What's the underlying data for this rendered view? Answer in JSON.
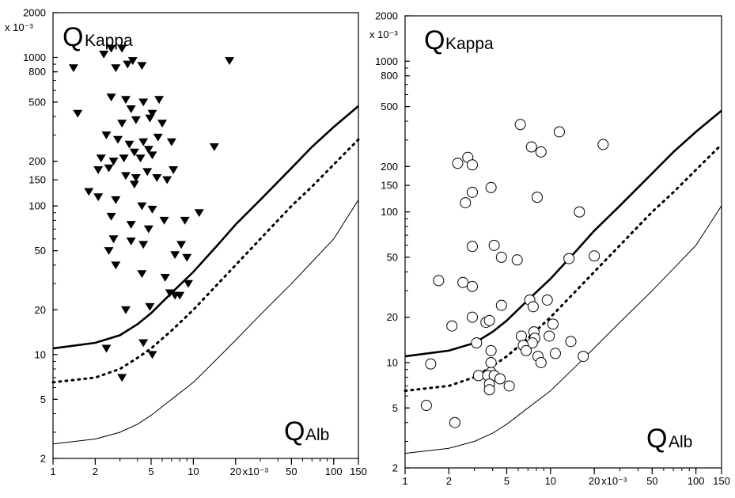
{
  "chart_data": [
    {
      "type": "scatter",
      "panel": "left",
      "x_scale": "log",
      "y_scale": "log",
      "xlim": [
        1,
        150
      ],
      "ylim": [
        2,
        2000
      ],
      "x_ticks": [
        "1",
        "2",
        "5",
        "10",
        "20",
        "50",
        "100",
        "150"
      ],
      "x_exponent_label": "x10⁻³",
      "y_ticks": [
        "2",
        "5",
        "10",
        "20",
        "50",
        "100",
        "150",
        "200",
        "500",
        "800",
        "1000",
        "2000"
      ],
      "y_exponent_label": "x 10⁻³",
      "y_axis_label": {
        "main": "Q",
        "sub": "Kappa"
      },
      "x_axis_label": {
        "main": "Q",
        "sub": "Alb"
      },
      "marker": "filled-triangle-down",
      "marker_color": "#000000",
      "points": [
        {
          "x": 1.4,
          "y": 850
        },
        {
          "x": 1.5,
          "y": 420
        },
        {
          "x": 2.3,
          "y": 1050
        },
        {
          "x": 2.6,
          "y": 1150
        },
        {
          "x": 2.8,
          "y": 850
        },
        {
          "x": 3.1,
          "y": 1150
        },
        {
          "x": 3.4,
          "y": 900
        },
        {
          "x": 3.7,
          "y": 950
        },
        {
          "x": 4.3,
          "y": 880
        },
        {
          "x": 18.1,
          "y": 950
        },
        {
          "x": 2.6,
          "y": 540
        },
        {
          "x": 3.3,
          "y": 520
        },
        {
          "x": 3.6,
          "y": 450
        },
        {
          "x": 4.4,
          "y": 500
        },
        {
          "x": 5.1,
          "y": 420
        },
        {
          "x": 5.7,
          "y": 520
        },
        {
          "x": 3.1,
          "y": 360
        },
        {
          "x": 3.9,
          "y": 380
        },
        {
          "x": 4.9,
          "y": 390
        },
        {
          "x": 6.0,
          "y": 360
        },
        {
          "x": 2.4,
          "y": 300
        },
        {
          "x": 2.9,
          "y": 280
        },
        {
          "x": 3.5,
          "y": 260
        },
        {
          "x": 4.4,
          "y": 270
        },
        {
          "x": 5.6,
          "y": 290
        },
        {
          "x": 7.0,
          "y": 270
        },
        {
          "x": 14.1,
          "y": 250
        },
        {
          "x": 2.2,
          "y": 210
        },
        {
          "x": 2.7,
          "y": 200
        },
        {
          "x": 3.2,
          "y": 210
        },
        {
          "x": 3.8,
          "y": 230
        },
        {
          "x": 4.2,
          "y": 210
        },
        {
          "x": 4.8,
          "y": 240
        },
        {
          "x": 5.1,
          "y": 220
        },
        {
          "x": 2.1,
          "y": 175
        },
        {
          "x": 2.5,
          "y": 180
        },
        {
          "x": 3.3,
          "y": 160
        },
        {
          "x": 3.9,
          "y": 155
        },
        {
          "x": 4.7,
          "y": 170
        },
        {
          "x": 5.5,
          "y": 155
        },
        {
          "x": 6.5,
          "y": 150
        },
        {
          "x": 7.2,
          "y": 175
        },
        {
          "x": 1.8,
          "y": 125
        },
        {
          "x": 2.1,
          "y": 115
        },
        {
          "x": 2.8,
          "y": 110
        },
        {
          "x": 3.8,
          "y": 140
        },
        {
          "x": 4.3,
          "y": 100
        },
        {
          "x": 5.1,
          "y": 95
        },
        {
          "x": 2.6,
          "y": 85
        },
        {
          "x": 3.6,
          "y": 75
        },
        {
          "x": 4.8,
          "y": 70
        },
        {
          "x": 6.2,
          "y": 80
        },
        {
          "x": 8.7,
          "y": 80
        },
        {
          "x": 11.0,
          "y": 90
        },
        {
          "x": 2.7,
          "y": 60
        },
        {
          "x": 3.6,
          "y": 58
        },
        {
          "x": 4.4,
          "y": 55
        },
        {
          "x": 8.2,
          "y": 55
        },
        {
          "x": 2.5,
          "y": 50
        },
        {
          "x": 2.8,
          "y": 40
        },
        {
          "x": 7.4,
          "y": 47
        },
        {
          "x": 9.0,
          "y": 45
        },
        {
          "x": 4.3,
          "y": 35
        },
        {
          "x": 6.3,
          "y": 33
        },
        {
          "x": 6.8,
          "y": 26
        },
        {
          "x": 7.4,
          "y": 25
        },
        {
          "x": 8.0,
          "y": 25
        },
        {
          "x": 9.2,
          "y": 30
        },
        {
          "x": 3.3,
          "y": 20
        },
        {
          "x": 4.9,
          "y": 21
        },
        {
          "x": 2.4,
          "y": 11
        },
        {
          "x": 4.4,
          "y": 12
        },
        {
          "x": 5.1,
          "y": 10
        },
        {
          "x": 3.1,
          "y": 7
        }
      ],
      "lines": [
        {
          "style": "thick-solid",
          "points": [
            [
              1,
              11
            ],
            [
              2,
              12
            ],
            [
              3,
              13.5
            ],
            [
              4,
              16
            ],
            [
              5,
              19
            ],
            [
              7,
              26
            ],
            [
              10,
              36
            ],
            [
              15,
              55
            ],
            [
              20,
              75
            ],
            [
              30,
              110
            ],
            [
              50,
              180
            ],
            [
              70,
              250
            ],
            [
              100,
              340
            ],
            [
              150,
              470
            ]
          ]
        },
        {
          "style": "dotted",
          "points": [
            [
              1,
              6.5
            ],
            [
              2,
              7
            ],
            [
              3,
              8
            ],
            [
              4,
              9.5
            ],
            [
              5,
              11
            ],
            [
              7,
              14.5
            ],
            [
              10,
              20
            ],
            [
              15,
              30
            ],
            [
              20,
              40
            ],
            [
              30,
              60
            ],
            [
              50,
              100
            ],
            [
              70,
              135
            ],
            [
              100,
              190
            ],
            [
              150,
              280
            ]
          ]
        },
        {
          "style": "thin-solid",
          "points": [
            [
              1,
              2.5
            ],
            [
              2,
              2.7
            ],
            [
              3,
              3
            ],
            [
              4,
              3.4
            ],
            [
              5,
              3.9
            ],
            [
              7,
              5
            ],
            [
              10,
              6.5
            ],
            [
              15,
              9.5
            ],
            [
              20,
              12.5
            ],
            [
              30,
              18.5
            ],
            [
              50,
              30
            ],
            [
              70,
              42
            ],
            [
              100,
              60
            ],
            [
              150,
              110
            ]
          ]
        }
      ]
    },
    {
      "type": "scatter",
      "panel": "right",
      "x_scale": "log",
      "y_scale": "log",
      "xlim": [
        1,
        150
      ],
      "ylim": [
        2,
        2000
      ],
      "x_ticks": [
        "1",
        "2",
        "5",
        "10",
        "20",
        "50",
        "100",
        "150"
      ],
      "x_exponent_label": "x10⁻³",
      "y_ticks": [
        "2",
        "5",
        "10",
        "20",
        "50",
        "100",
        "150",
        "200",
        "500",
        "800",
        "1000",
        "2000"
      ],
      "y_exponent_label": "x 10⁻³",
      "y_axis_label": {
        "main": "Q",
        "sub": "Kappa"
      },
      "x_axis_label": {
        "main": "Q",
        "sub": "Alb"
      },
      "marker": "open-circle",
      "marker_color": "#000000",
      "points": [
        {
          "x": 6.2,
          "y": 380
        },
        {
          "x": 11.5,
          "y": 340
        },
        {
          "x": 7.4,
          "y": 270
        },
        {
          "x": 23.0,
          "y": 280
        },
        {
          "x": 8.6,
          "y": 250
        },
        {
          "x": 2.7,
          "y": 230
        },
        {
          "x": 2.3,
          "y": 210
        },
        {
          "x": 2.9,
          "y": 205
        },
        {
          "x": 2.9,
          "y": 135
        },
        {
          "x": 3.9,
          "y": 145
        },
        {
          "x": 8.1,
          "y": 125
        },
        {
          "x": 2.6,
          "y": 115
        },
        {
          "x": 15.8,
          "y": 100
        },
        {
          "x": 4.1,
          "y": 60
        },
        {
          "x": 2.9,
          "y": 59
        },
        {
          "x": 4.6,
          "y": 50
        },
        {
          "x": 5.9,
          "y": 48
        },
        {
          "x": 13.4,
          "y": 49
        },
        {
          "x": 20.0,
          "y": 51
        },
        {
          "x": 1.7,
          "y": 35
        },
        {
          "x": 2.5,
          "y": 34
        },
        {
          "x": 2.9,
          "y": 32
        },
        {
          "x": 7.2,
          "y": 26
        },
        {
          "x": 9.5,
          "y": 26
        },
        {
          "x": 4.6,
          "y": 24
        },
        {
          "x": 7.6,
          "y": 23.5
        },
        {
          "x": 2.9,
          "y": 20
        },
        {
          "x": 3.6,
          "y": 18.5
        },
        {
          "x": 3.8,
          "y": 19
        },
        {
          "x": 2.1,
          "y": 17.5
        },
        {
          "x": 6.3,
          "y": 15
        },
        {
          "x": 7.7,
          "y": 16
        },
        {
          "x": 7.8,
          "y": 14.5
        },
        {
          "x": 10.4,
          "y": 18
        },
        {
          "x": 9.8,
          "y": 15
        },
        {
          "x": 7.5,
          "y": 13.5
        },
        {
          "x": 6.5,
          "y": 13
        },
        {
          "x": 3.1,
          "y": 13.5
        },
        {
          "x": 6.8,
          "y": 12
        },
        {
          "x": 10.8,
          "y": 11.5
        },
        {
          "x": 13.8,
          "y": 13.8
        },
        {
          "x": 16.8,
          "y": 11
        },
        {
          "x": 3.9,
          "y": 12
        },
        {
          "x": 8.2,
          "y": 11
        },
        {
          "x": 8.6,
          "y": 10
        },
        {
          "x": 3.9,
          "y": 10
        },
        {
          "x": 1.5,
          "y": 9.8
        },
        {
          "x": 3.9,
          "y": 8.6
        },
        {
          "x": 3.2,
          "y": 8.2
        },
        {
          "x": 3.7,
          "y": 8.2
        },
        {
          "x": 4.1,
          "y": 8.2
        },
        {
          "x": 4.5,
          "y": 7.8
        },
        {
          "x": 3.8,
          "y": 7.2
        },
        {
          "x": 5.2,
          "y": 7
        },
        {
          "x": 3.8,
          "y": 6.6
        },
        {
          "x": 1.4,
          "y": 5.2
        },
        {
          "x": 2.2,
          "y": 4
        }
      ],
      "lines": [
        {
          "style": "thick-solid",
          "points": [
            [
              1,
              11
            ],
            [
              2,
              12
            ],
            [
              3,
              13.5
            ],
            [
              4,
              16
            ],
            [
              5,
              19
            ],
            [
              7,
              26
            ],
            [
              10,
              36
            ],
            [
              15,
              55
            ],
            [
              20,
              75
            ],
            [
              30,
              110
            ],
            [
              50,
              180
            ],
            [
              70,
              250
            ],
            [
              100,
              340
            ],
            [
              150,
              470
            ]
          ]
        },
        {
          "style": "dotted",
          "points": [
            [
              1,
              6.5
            ],
            [
              2,
              7
            ],
            [
              3,
              8
            ],
            [
              4,
              9.5
            ],
            [
              5,
              11
            ],
            [
              7,
              14.5
            ],
            [
              10,
              20
            ],
            [
              15,
              30
            ],
            [
              20,
              40
            ],
            [
              30,
              60
            ],
            [
              50,
              100
            ],
            [
              70,
              135
            ],
            [
              100,
              190
            ],
            [
              150,
              280
            ]
          ]
        },
        {
          "style": "thin-solid",
          "points": [
            [
              1,
              2.5
            ],
            [
              2,
              2.7
            ],
            [
              3,
              3
            ],
            [
              4,
              3.4
            ],
            [
              5,
              3.9
            ],
            [
              7,
              5
            ],
            [
              10,
              6.5
            ],
            [
              15,
              9.5
            ],
            [
              20,
              12.5
            ],
            [
              30,
              18.5
            ],
            [
              50,
              30
            ],
            [
              70,
              42
            ],
            [
              100,
              60
            ],
            [
              150,
              110
            ]
          ]
        }
      ]
    }
  ]
}
